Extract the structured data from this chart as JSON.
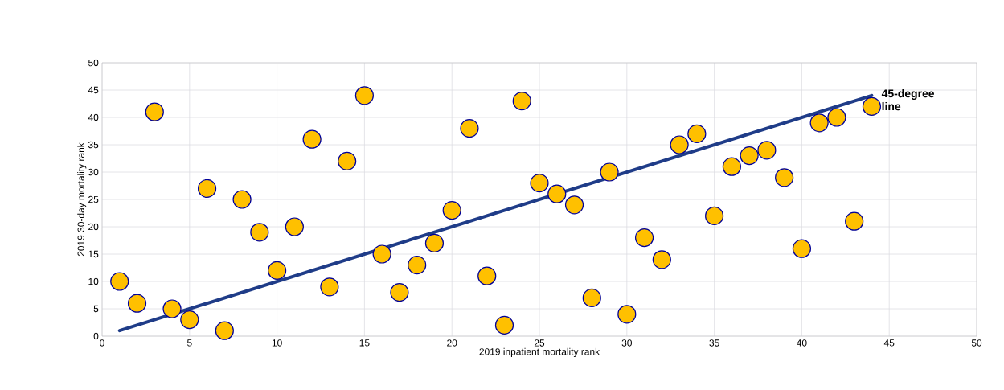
{
  "chart_data": {
    "type": "scatter",
    "xlabel": "2019 inpatient mortality rank",
    "ylabel": "2019 30-day mortality  rank",
    "x": [
      1,
      2,
      3,
      4,
      5,
      6,
      7,
      8,
      9,
      10,
      11,
      12,
      13,
      14,
      15,
      16,
      17,
      18,
      19,
      20,
      21,
      22,
      23,
      24,
      25,
      26,
      27,
      28,
      29,
      30,
      31,
      32,
      33,
      34,
      35,
      36,
      37,
      38,
      39,
      40,
      41,
      42,
      43,
      44
    ],
    "series": [
      {
        "type": "line",
        "color": "#1f3c88",
        "x": [
          1,
          44
        ],
        "values": [
          1,
          44
        ],
        "marker": "none"
      },
      {
        "color": "#ffc000",
        "marker": "circle",
        "values": [
          10,
          6,
          41,
          5,
          3,
          27,
          1,
          25,
          19,
          12,
          20,
          36,
          9,
          32,
          44,
          15,
          8,
          13,
          17,
          23,
          38,
          11,
          2,
          43,
          28,
          26,
          24,
          7,
          30,
          4,
          18,
          14,
          35,
          37,
          22,
          31,
          33,
          34,
          29,
          16,
          39,
          40,
          21,
          42
        ]
      }
    ],
    "annotations": [
      {
        "text": "45-degree line",
        "x": 44,
        "y": 44
      }
    ],
    "xlim": [
      0,
      50
    ],
    "ylim": [
      0,
      50
    ],
    "xticks": [
      0,
      5,
      10,
      15,
      20,
      25,
      30,
      35,
      40,
      45,
      50
    ],
    "yticks": [
      0,
      5,
      10,
      15,
      20,
      25,
      30,
      35,
      40,
      45,
      50
    ],
    "grid": true
  }
}
